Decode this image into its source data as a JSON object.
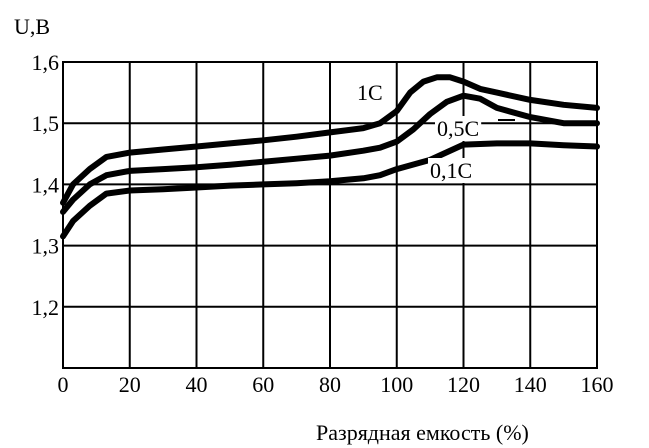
{
  "chart_data": {
    "type": "line",
    "title": "",
    "xlabel": "Разрядная  емкость (%)",
    "ylabel": "U,B",
    "xlim": [
      0,
      160
    ],
    "ylim": [
      1.1,
      1.6
    ],
    "grid": true,
    "line_color": "#000000",
    "x_ticks": [
      0,
      20,
      40,
      60,
      80,
      100,
      120,
      140,
      160
    ],
    "x_tick_labels": [
      "0",
      "20",
      "40",
      "60",
      "80",
      "100",
      "120",
      "140",
      "160"
    ],
    "y_ticks": [
      1.2,
      1.3,
      1.4,
      1.5,
      1.6
    ],
    "y_tick_labels": [
      "1,2",
      "1,3",
      "1,4",
      "1,5",
      "1,6"
    ],
    "series": [
      {
        "name": "1С",
        "x": [
          0,
          3,
          8,
          13,
          20,
          30,
          40,
          50,
          60,
          70,
          80,
          90,
          95,
          100,
          104,
          108,
          112,
          116,
          120,
          125,
          130,
          140,
          150,
          160
        ],
        "y": [
          1.37,
          1.4,
          1.425,
          1.445,
          1.452,
          1.457,
          1.462,
          1.467,
          1.472,
          1.478,
          1.485,
          1.492,
          1.5,
          1.52,
          1.55,
          1.568,
          1.575,
          1.575,
          1.568,
          1.556,
          1.55,
          1.538,
          1.53,
          1.525
        ]
      },
      {
        "name": "0,5С",
        "x": [
          0,
          3,
          8,
          13,
          20,
          30,
          40,
          50,
          60,
          70,
          80,
          90,
          95,
          100,
          105,
          110,
          115,
          120,
          125,
          130,
          140,
          150,
          160
        ],
        "y": [
          1.355,
          1.375,
          1.4,
          1.415,
          1.422,
          1.425,
          1.428,
          1.432,
          1.437,
          1.442,
          1.447,
          1.455,
          1.46,
          1.47,
          1.49,
          1.515,
          1.535,
          1.545,
          1.54,
          1.525,
          1.51,
          1.5,
          1.5
        ]
      },
      {
        "name": "0,1С",
        "x": [
          0,
          3,
          8,
          13,
          20,
          30,
          40,
          50,
          60,
          70,
          80,
          90,
          95,
          100,
          110,
          120,
          130,
          140,
          150,
          160
        ],
        "y": [
          1.315,
          1.34,
          1.365,
          1.385,
          1.39,
          1.392,
          1.395,
          1.398,
          1.4,
          1.402,
          1.405,
          1.41,
          1.415,
          1.425,
          1.44,
          1.465,
          1.467,
          1.467,
          1.464,
          1.462
        ]
      }
    ],
    "series_label_text": [
      "1С",
      "0,5С",
      "0,1С"
    ]
  }
}
